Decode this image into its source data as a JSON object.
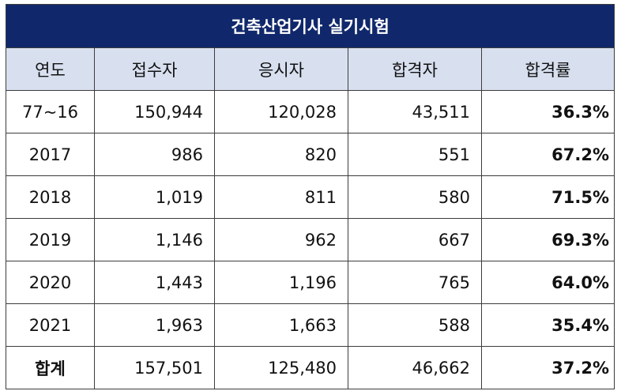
{
  "table": {
    "title": "건축산업기사 실기시험",
    "headers": [
      "연도",
      "접수자",
      "응시자",
      "합격자",
      "합격률"
    ],
    "rows": [
      {
        "year": "77~16",
        "applicants": "150,944",
        "examinees": "120,028",
        "passers": "43,511",
        "rate": "36.3%"
      },
      {
        "year": "2017",
        "applicants": "986",
        "examinees": "820",
        "passers": "551",
        "rate": "67.2%"
      },
      {
        "year": "2018",
        "applicants": "1,019",
        "examinees": "811",
        "passers": "580",
        "rate": "71.5%"
      },
      {
        "year": "2019",
        "applicants": "1,146",
        "examinees": "962",
        "passers": "667",
        "rate": "69.3%"
      },
      {
        "year": "2020",
        "applicants": "1,443",
        "examinees": "1,196",
        "passers": "765",
        "rate": "64.0%"
      },
      {
        "year": "2021",
        "applicants": "1,963",
        "examinees": "1,663",
        "passers": "588",
        "rate": "35.4%"
      }
    ],
    "total": {
      "year": "합계",
      "applicants": "157,501",
      "examinees": "125,480",
      "passers": "46,662",
      "rate": "37.2%"
    }
  },
  "colors": {
    "title_bg": "#10286b",
    "header_bg": "#d8e0f0",
    "border": "#3c3c3c"
  }
}
